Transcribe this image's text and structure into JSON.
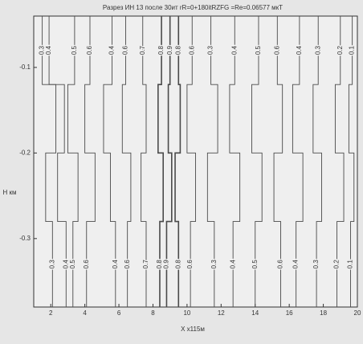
{
  "chart_data": {
    "type": "contour",
    "title": "Разрез ИН 13 после 30ит rR=0+180itRZFG =Re=0.06577 мкТ",
    "xlabel": "X x115м",
    "ylabel": "H км",
    "xlim": [
      1,
      20
    ],
    "ylim": [
      -0.38,
      -0.04
    ],
    "xticks": [
      2,
      4,
      6,
      8,
      10,
      12,
      14,
      16,
      18,
      20
    ],
    "yticks": [
      -0.1,
      -0.2,
      -0.3
    ],
    "color": "#4a4a4a",
    "contours": [
      {
        "level": 0.3,
        "x": [
          1.5,
          1.5,
          2.3,
          2.3,
          1.7,
          1.7,
          2.1,
          2.1
        ],
        "y": [
          -0.04,
          -0.12,
          -0.12,
          -0.2,
          -0.2,
          -0.28,
          -0.28,
          -0.38
        ]
      },
      {
        "level": 0.4,
        "x": [
          1.9,
          1.9,
          2.8,
          2.8,
          2.4,
          2.4,
          2.9,
          2.9
        ],
        "y": [
          -0.04,
          -0.12,
          -0.12,
          -0.2,
          -0.2,
          -0.28,
          -0.28,
          -0.38
        ]
      },
      {
        "level": 0.5,
        "x": [
          3.4,
          3.4,
          3.0,
          3.0,
          3.6,
          3.6,
          3.3,
          3.3
        ],
        "y": [
          -0.04,
          -0.12,
          -0.12,
          -0.2,
          -0.2,
          -0.28,
          -0.28,
          -0.38
        ]
      },
      {
        "level": 0.6,
        "x": [
          4.3,
          4.3,
          4.0,
          4.0,
          4.6,
          4.6,
          4.1,
          4.1
        ],
        "y": [
          -0.04,
          -0.12,
          -0.12,
          -0.2,
          -0.2,
          -0.28,
          -0.28,
          -0.38
        ]
      },
      {
        "level": 0.4,
        "x": [
          5.6,
          5.6,
          5.1,
          5.1,
          5.5,
          5.5,
          5.8,
          5.8
        ],
        "y": [
          -0.04,
          -0.12,
          -0.12,
          -0.2,
          -0.2,
          -0.28,
          -0.28,
          -0.38
        ]
      },
      {
        "level": 0.6,
        "x": [
          6.4,
          6.4,
          6.2,
          6.2,
          6.7,
          6.7,
          6.5,
          6.5
        ],
        "y": [
          -0.04,
          -0.12,
          -0.12,
          -0.2,
          -0.2,
          -0.28,
          -0.28,
          -0.38
        ]
      },
      {
        "level": 0.7,
        "x": [
          7.4,
          7.4,
          7.6,
          7.6,
          7.3,
          7.3,
          7.6,
          7.6
        ],
        "y": [
          -0.04,
          -0.12,
          -0.12,
          -0.2,
          -0.2,
          -0.28,
          -0.28,
          -0.38
        ]
      },
      {
        "level": 0.8,
        "x": [
          8.5,
          8.5,
          8.3,
          8.3,
          8.6,
          8.6,
          8.4,
          8.4
        ],
        "y": [
          -0.04,
          -0.12,
          -0.12,
          -0.2,
          -0.2,
          -0.28,
          -0.28,
          -0.38
        ]
      },
      {
        "level": 0.9,
        "x": [
          9.0,
          9.0,
          8.9,
          8.9,
          9.1,
          9.1,
          8.8,
          8.8
        ],
        "y": [
          -0.04,
          -0.12,
          -0.12,
          -0.2,
          -0.2,
          -0.28,
          -0.28,
          -0.38
        ]
      },
      {
        "level": 0.8,
        "x": [
          9.5,
          9.5,
          9.6,
          9.6,
          9.3,
          9.3,
          9.5,
          9.5
        ],
        "y": [
          -0.04,
          -0.12,
          -0.12,
          -0.2,
          -0.2,
          -0.28,
          -0.28,
          -0.38
        ]
      },
      {
        "level": 0.6,
        "x": [
          10.3,
          10.3,
          10.0,
          10.0,
          10.5,
          10.5,
          10.2,
          10.2
        ],
        "y": [
          -0.04,
          -0.12,
          -0.12,
          -0.2,
          -0.2,
          -0.28,
          -0.28,
          -0.38
        ]
      },
      {
        "level": 0.3,
        "x": [
          11.4,
          11.4,
          11.8,
          11.8,
          11.2,
          11.2,
          11.6,
          11.6
        ],
        "y": [
          -0.04,
          -0.12,
          -0.12,
          -0.2,
          -0.2,
          -0.28,
          -0.28,
          -0.38
        ]
      },
      {
        "level": 0.4,
        "x": [
          12.8,
          12.8,
          12.5,
          12.5,
          13.1,
          13.1,
          12.7,
          12.7
        ],
        "y": [
          -0.04,
          -0.12,
          -0.12,
          -0.2,
          -0.2,
          -0.28,
          -0.28,
          -0.38
        ]
      },
      {
        "level": 0.5,
        "x": [
          14.2,
          14.2,
          13.8,
          13.8,
          14.4,
          14.4,
          14.0,
          14.0
        ],
        "y": [
          -0.04,
          -0.12,
          -0.12,
          -0.2,
          -0.2,
          -0.28,
          -0.28,
          -0.38
        ]
      },
      {
        "level": 0.6,
        "x": [
          15.3,
          15.3,
          15.6,
          15.6,
          15.1,
          15.1,
          15.5,
          15.5
        ],
        "y": [
          -0.04,
          -0.12,
          -0.12,
          -0.2,
          -0.2,
          -0.28,
          -0.28,
          -0.38
        ]
      },
      {
        "level": 0.4,
        "x": [
          16.6,
          16.6,
          16.2,
          16.2,
          16.8,
          16.8,
          16.4,
          16.4
        ],
        "y": [
          -0.04,
          -0.12,
          -0.12,
          -0.2,
          -0.2,
          -0.28,
          -0.28,
          -0.38
        ]
      },
      {
        "level": 0.3,
        "x": [
          17.7,
          17.7,
          17.4,
          17.4,
          17.9,
          17.9,
          17.6,
          17.6
        ],
        "y": [
          -0.04,
          -0.12,
          -0.12,
          -0.2,
          -0.2,
          -0.28,
          -0.28,
          -0.38
        ]
      },
      {
        "level": 0.2,
        "x": [
          19.0,
          19.0,
          18.7,
          18.7,
          19.2,
          19.2,
          18.8,
          18.8
        ],
        "y": [
          -0.04,
          -0.12,
          -0.12,
          -0.2,
          -0.2,
          -0.28,
          -0.28,
          -0.38
        ]
      },
      {
        "level": 0.1,
        "x": [
          19.7,
          19.7,
          19.5,
          19.5,
          19.8,
          19.8,
          19.6,
          19.6
        ],
        "y": [
          -0.04,
          -0.12,
          -0.12,
          -0.2,
          -0.2,
          -0.28,
          -0.28,
          -0.38
        ]
      }
    ]
  }
}
